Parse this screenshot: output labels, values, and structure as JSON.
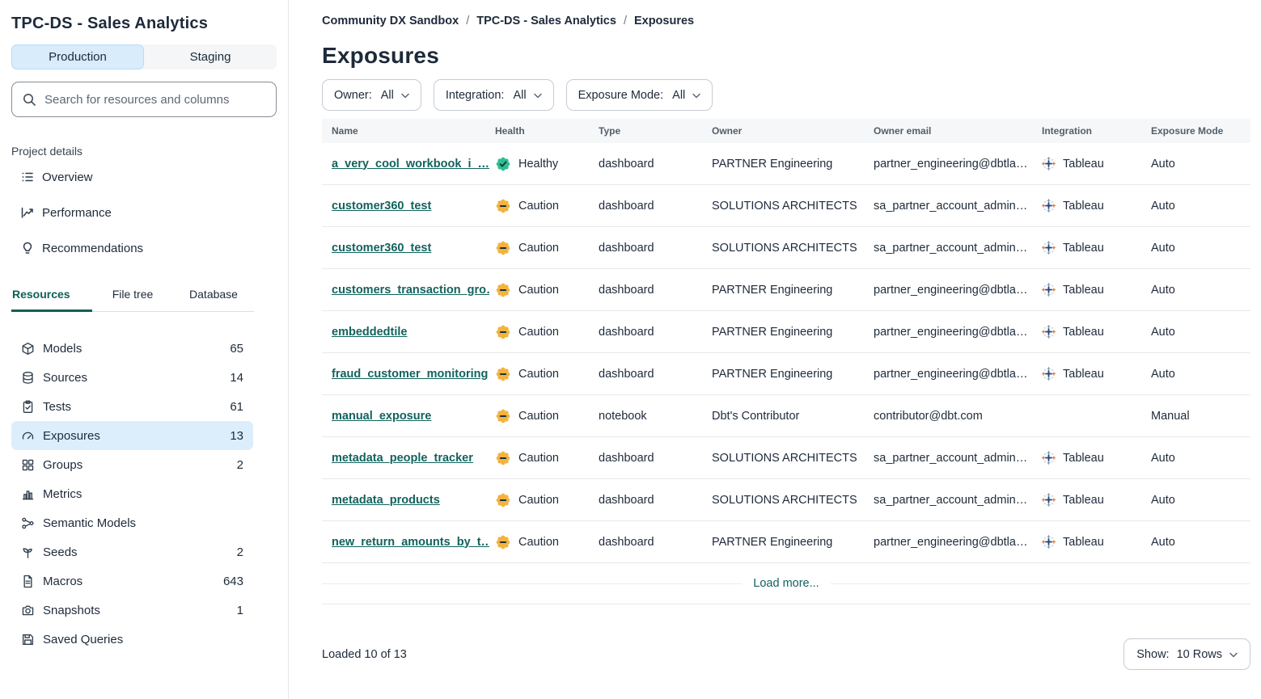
{
  "sidebar": {
    "title": "TPC-DS - Sales Analytics",
    "env_toggle": {
      "production": "Production",
      "staging": "Staging"
    },
    "search_placeholder": "Search for resources and columns",
    "project_details_label": "Project details",
    "nav": [
      {
        "label": "Overview"
      },
      {
        "label": "Performance"
      },
      {
        "label": "Recommendations"
      }
    ],
    "tabs": [
      {
        "label": "Resources"
      },
      {
        "label": "File tree"
      },
      {
        "label": "Database"
      }
    ],
    "resources": [
      {
        "label": "Models",
        "count": "65"
      },
      {
        "label": "Sources",
        "count": "14"
      },
      {
        "label": "Tests",
        "count": "61"
      },
      {
        "label": "Exposures",
        "count": "13"
      },
      {
        "label": "Groups",
        "count": "2"
      },
      {
        "label": "Metrics",
        "count": ""
      },
      {
        "label": "Semantic Models",
        "count": ""
      },
      {
        "label": "Seeds",
        "count": "2"
      },
      {
        "label": "Macros",
        "count": "643"
      },
      {
        "label": "Snapshots",
        "count": "1"
      },
      {
        "label": "Saved Queries",
        "count": ""
      }
    ]
  },
  "main": {
    "breadcrumb": [
      {
        "label": "Community DX Sandbox"
      },
      {
        "label": "TPC-DS - Sales Analytics"
      },
      {
        "label": "Exposures"
      }
    ],
    "title": "Exposures",
    "filters": [
      {
        "label": "Owner:",
        "value": "All"
      },
      {
        "label": "Integration:",
        "value": "All"
      },
      {
        "label": "Exposure Mode:",
        "value": "All"
      }
    ],
    "table": {
      "headers": [
        "Name",
        "Health",
        "Type",
        "Owner",
        "Owner email",
        "Integration",
        "Exposure Mode"
      ],
      "rows": [
        {
          "name": "a_very_cool_workbook_i_…",
          "health": "Healthy",
          "type": "dashboard",
          "owner": "PARTNER Engineering",
          "email": "partner_engineering@dbtla…",
          "integration": "Tableau",
          "mode": "Auto"
        },
        {
          "name": "customer360_test",
          "health": "Caution",
          "type": "dashboard",
          "owner": "SOLUTIONS ARCHITECTS",
          "email": "sa_partner_account_admin…",
          "integration": "Tableau",
          "mode": "Auto"
        },
        {
          "name": "customer360_test",
          "health": "Caution",
          "type": "dashboard",
          "owner": "SOLUTIONS ARCHITECTS",
          "email": "sa_partner_account_admin…",
          "integration": "Tableau",
          "mode": "Auto"
        },
        {
          "name": "customers_transaction_gro…",
          "health": "Caution",
          "type": "dashboard",
          "owner": "PARTNER Engineering",
          "email": "partner_engineering@dbtla…",
          "integration": "Tableau",
          "mode": "Auto"
        },
        {
          "name": "embeddedtile",
          "health": "Caution",
          "type": "dashboard",
          "owner": "PARTNER Engineering",
          "email": "partner_engineering@dbtla…",
          "integration": "Tableau",
          "mode": "Auto"
        },
        {
          "name": "fraud_customer_monitoring",
          "health": "Caution",
          "type": "dashboard",
          "owner": "PARTNER Engineering",
          "email": "partner_engineering@dbtla…",
          "integration": "Tableau",
          "mode": "Auto"
        },
        {
          "name": "manual_exposure",
          "health": "Caution",
          "type": "notebook",
          "owner": "Dbt's Contributor",
          "email": "contributor@dbt.com",
          "integration": "",
          "mode": "Manual"
        },
        {
          "name": "metadata_people_tracker",
          "health": "Caution",
          "type": "dashboard",
          "owner": "SOLUTIONS ARCHITECTS",
          "email": "sa_partner_account_admin…",
          "integration": "Tableau",
          "mode": "Auto"
        },
        {
          "name": "metadata_products",
          "health": "Caution",
          "type": "dashboard",
          "owner": "SOLUTIONS ARCHITECTS",
          "email": "sa_partner_account_admin…",
          "integration": "Tableau",
          "mode": "Auto"
        },
        {
          "name": "new_return_amounts_by_t…",
          "health": "Caution",
          "type": "dashboard",
          "owner": "PARTNER Engineering",
          "email": "partner_engineering@dbtla…",
          "integration": "Tableau",
          "mode": "Auto"
        }
      ],
      "load_more": "Load more..."
    },
    "footer": {
      "loaded": "Loaded 10 of 13",
      "show_label": "Show:",
      "show_value": "10 Rows"
    }
  },
  "colors": {
    "healthy_badge": "#2ebe8d",
    "caution_badge": "#f3b33d",
    "badge_glyph": "#173247",
    "link_teal": "#12635d",
    "active_highlight": "#dcedfc",
    "production_active_bg": "#d8ecfc",
    "tableau_navy": "#1f457e",
    "tableau_orange": "#e8762d",
    "tableau_steel": "#7b95a8",
    "tableau_light": "#c4d1da"
  }
}
